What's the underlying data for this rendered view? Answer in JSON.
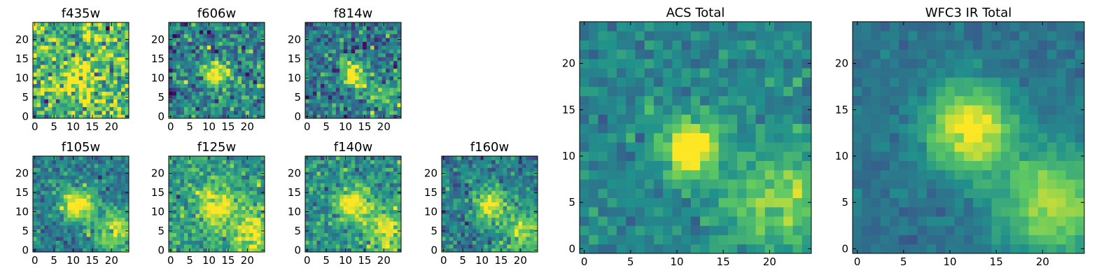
{
  "figure": {
    "colormap": "viridis",
    "colormap_stops": [
      "#440154",
      "#3b528b",
      "#21918c",
      "#5ec962",
      "#fde725"
    ],
    "image_size": 25,
    "panels": [
      {
        "id": "f435w",
        "title": "f435w",
        "xticks": [
          "0",
          "5",
          "10",
          "15",
          "20"
        ],
        "yticks": [
          "0",
          "5",
          "10",
          "15",
          "20"
        ],
        "noise": 0.95,
        "source_strength": 0.35,
        "source_center": [
          11,
          10
        ],
        "source_sigma": 3.0,
        "secondary_strength": 0.0,
        "base": 0.68,
        "seed": 11
      },
      {
        "id": "f606w",
        "title": "f606w",
        "xticks": [
          "0",
          "5",
          "10",
          "15",
          "20"
        ],
        "yticks": [
          "0",
          "5",
          "10",
          "15",
          "20"
        ],
        "noise": 0.75,
        "source_strength": 0.55,
        "source_center": [
          12,
          11
        ],
        "source_sigma": 2.4,
        "secondary_strength": 0.12,
        "base": 0.42,
        "seed": 23
      },
      {
        "id": "f814w",
        "title": "f814w",
        "xticks": [
          "0",
          "5",
          "10",
          "15",
          "20"
        ],
        "yticks": [
          "0",
          "5",
          "10",
          "15",
          "20"
        ],
        "noise": 0.7,
        "source_strength": 0.6,
        "source_center": [
          12,
          11
        ],
        "source_sigma": 2.4,
        "secondary_strength": 0.3,
        "base": 0.4,
        "seed": 37
      },
      {
        "id": "f105w",
        "title": "f105w",
        "xticks": [
          "0",
          "5",
          "10",
          "15",
          "20"
        ],
        "yticks": [
          "0",
          "5",
          "10",
          "15",
          "20"
        ],
        "noise": 0.5,
        "source_strength": 0.7,
        "source_center": [
          11,
          12
        ],
        "source_sigma": 3.0,
        "secondary_strength": 0.45,
        "base": 0.42,
        "seed": 41
      },
      {
        "id": "f125w",
        "title": "f125w",
        "xticks": [
          "0",
          "5",
          "10",
          "15",
          "20"
        ],
        "yticks": [
          "0",
          "5",
          "10",
          "15",
          "20"
        ],
        "noise": 0.55,
        "source_strength": 0.5,
        "source_center": [
          12,
          11
        ],
        "source_sigma": 3.4,
        "secondary_strength": 0.4,
        "base": 0.55,
        "seed": 53
      },
      {
        "id": "f140w",
        "title": "f140w",
        "xticks": [
          "0",
          "5",
          "10",
          "15",
          "20"
        ],
        "yticks": [
          "0",
          "5",
          "10",
          "15",
          "20"
        ],
        "noise": 0.55,
        "source_strength": 0.6,
        "source_center": [
          12,
          12
        ],
        "source_sigma": 3.0,
        "secondary_strength": 0.45,
        "base": 0.5,
        "seed": 67
      },
      {
        "id": "f160w",
        "title": "f160w",
        "xticks": [
          "0",
          "5",
          "10",
          "15",
          "20"
        ],
        "yticks": [
          "0",
          "5",
          "10",
          "15",
          "20"
        ],
        "noise": 0.55,
        "source_strength": 0.65,
        "source_center": [
          12,
          12
        ],
        "source_sigma": 2.8,
        "secondary_strength": 0.45,
        "base": 0.42,
        "seed": 79
      },
      {
        "id": "acs_total",
        "title": "ACS Total",
        "xticks": [
          "0",
          "5",
          "10",
          "15",
          "20"
        ],
        "yticks": [
          "0",
          "5",
          "10",
          "15",
          "20"
        ],
        "noise": 0.35,
        "source_strength": 0.7,
        "source_center": [
          11.5,
          11
        ],
        "source_sigma": 2.2,
        "secondary_strength": 0.35,
        "base": 0.45,
        "seed": 97
      },
      {
        "id": "wfc3_total",
        "title": "WFC3 IR Total",
        "xticks": [
          "0",
          "5",
          "10",
          "15",
          "20"
        ],
        "yticks": [
          "0",
          "5",
          "10",
          "15",
          "20"
        ],
        "noise": 0.2,
        "source_strength": 0.65,
        "source_center": [
          12,
          13
        ],
        "source_sigma": 3.2,
        "secondary_strength": 0.5,
        "base": 0.38,
        "seed": 113
      }
    ]
  },
  "chart_data": [
    {
      "type": "heatmap",
      "title": "f435w",
      "xlim": [
        0,
        24
      ],
      "ylim": [
        0,
        24
      ],
      "colormap": "viridis",
      "description_of_content": "noisy field, faint source near (11,10)"
    },
    {
      "type": "heatmap",
      "title": "f606w",
      "xlim": [
        0,
        24
      ],
      "ylim": [
        0,
        24
      ],
      "colormap": "viridis",
      "source_center": [
        12,
        11
      ]
    },
    {
      "type": "heatmap",
      "title": "f814w",
      "xlim": [
        0,
        24
      ],
      "ylim": [
        0,
        24
      ],
      "colormap": "viridis",
      "source_center": [
        12,
        11
      ]
    },
    {
      "type": "heatmap",
      "title": "f105w",
      "xlim": [
        0,
        24
      ],
      "ylim": [
        0,
        24
      ],
      "colormap": "viridis",
      "source_center": [
        11,
        12
      ]
    },
    {
      "type": "heatmap",
      "title": "f125w",
      "xlim": [
        0,
        24
      ],
      "ylim": [
        0,
        24
      ],
      "colormap": "viridis",
      "source_center": [
        12,
        11
      ]
    },
    {
      "type": "heatmap",
      "title": "f140w",
      "xlim": [
        0,
        24
      ],
      "ylim": [
        0,
        24
      ],
      "colormap": "viridis",
      "source_center": [
        12,
        12
      ]
    },
    {
      "type": "heatmap",
      "title": "f160w",
      "xlim": [
        0,
        24
      ],
      "ylim": [
        0,
        24
      ],
      "colormap": "viridis",
      "source_center": [
        12,
        12
      ]
    },
    {
      "type": "heatmap",
      "title": "ACS Total",
      "xlim": [
        0,
        24
      ],
      "ylim": [
        0,
        24
      ],
      "colormap": "viridis",
      "source_center": [
        11.5,
        11
      ]
    },
    {
      "type": "heatmap",
      "title": "WFC3 IR Total",
      "xlim": [
        0,
        24
      ],
      "ylim": [
        0,
        24
      ],
      "colormap": "viridis",
      "source_center": [
        12,
        13
      ]
    }
  ]
}
